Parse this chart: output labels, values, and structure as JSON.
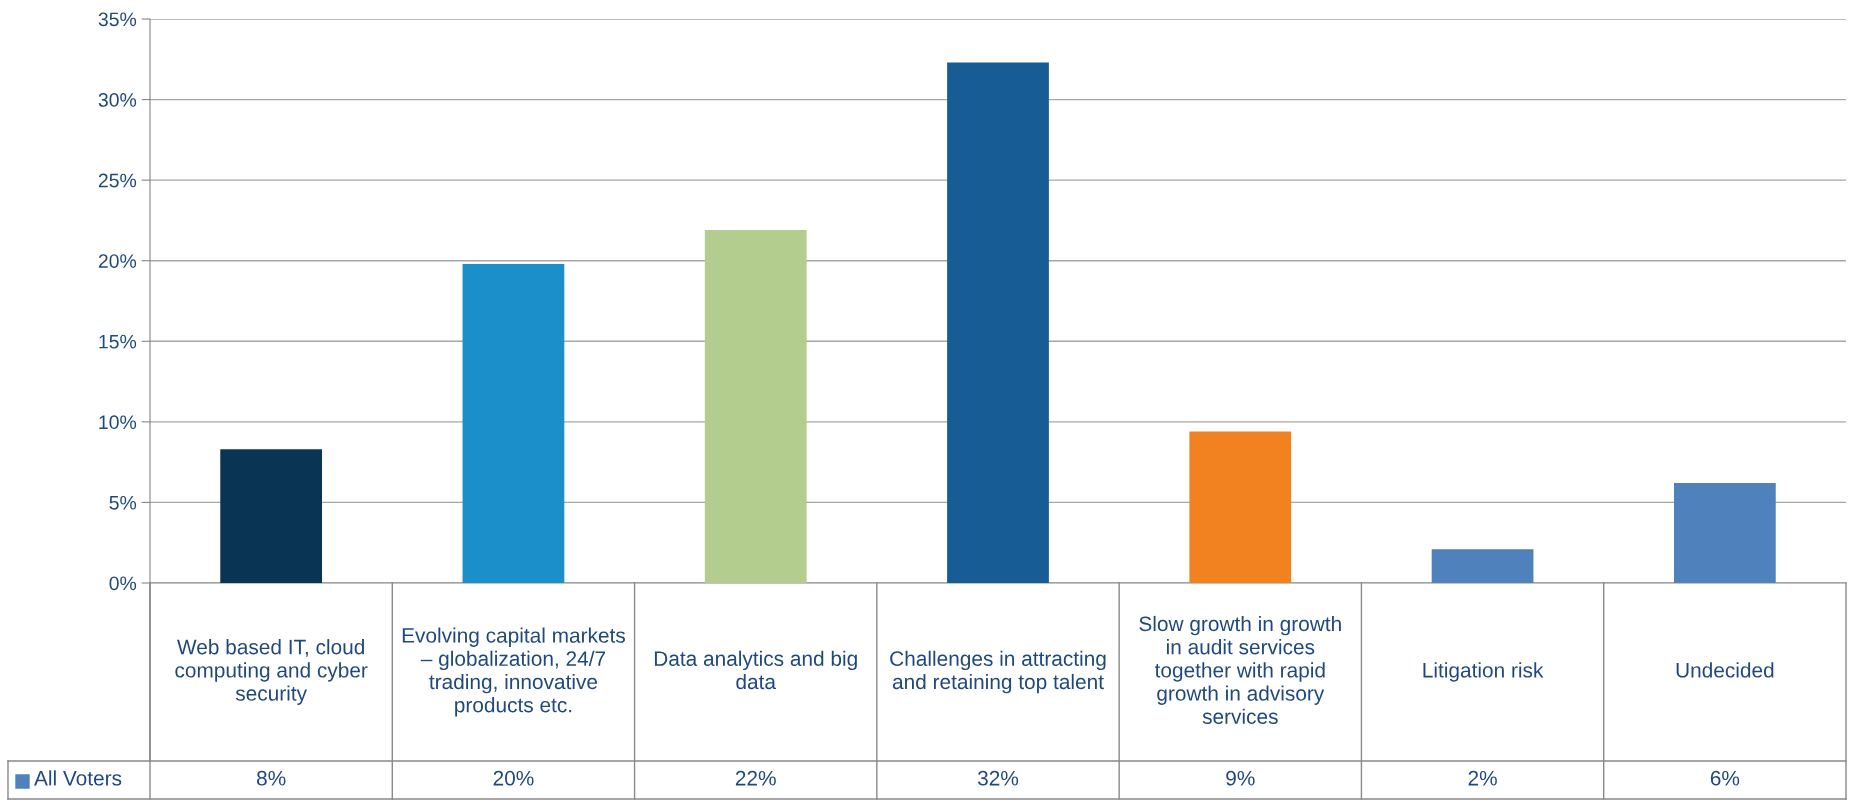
{
  "chart_data": {
    "type": "bar",
    "categories": [
      "Web based IT, cloud computing and cyber security",
      "Evolving capital markets – globalization, 24/7 trading, innovative products etc.",
      "Data analytics and big data",
      "Challenges in attracting and retaining top talent",
      "Slow growth in growth in audit services together with rapid growth in advisory services",
      "Litigation risk",
      "Undecided"
    ],
    "series": [
      {
        "name": "All Voters",
        "color": "#4f81bd",
        "values": [
          8.3,
          19.8,
          21.9,
          32.3,
          9.4,
          2.1,
          6.2
        ],
        "colors": [
          "#0a3453",
          "#1b8fc9",
          "#b3cd8f",
          "#175c94",
          "#f28120",
          "#4f81bd",
          "#4f81bd"
        ],
        "value_labels": [
          "8%",
          "20%",
          "22%",
          "32%",
          "9%",
          "2%",
          "6%"
        ]
      }
    ],
    "ylim": [
      0,
      35
    ],
    "yticks": [
      {
        "value": 0,
        "label": "0%"
      },
      {
        "value": 5,
        "label": "5%"
      },
      {
        "value": 10,
        "label": "10%"
      },
      {
        "value": 15,
        "label": "15%"
      },
      {
        "value": 20,
        "label": "20%"
      },
      {
        "value": 25,
        "label": "25%"
      },
      {
        "value": 30,
        "label": "30%"
      },
      {
        "value": 35,
        "label": "35%"
      }
    ],
    "grid": "y",
    "legend": "bottom left"
  }
}
